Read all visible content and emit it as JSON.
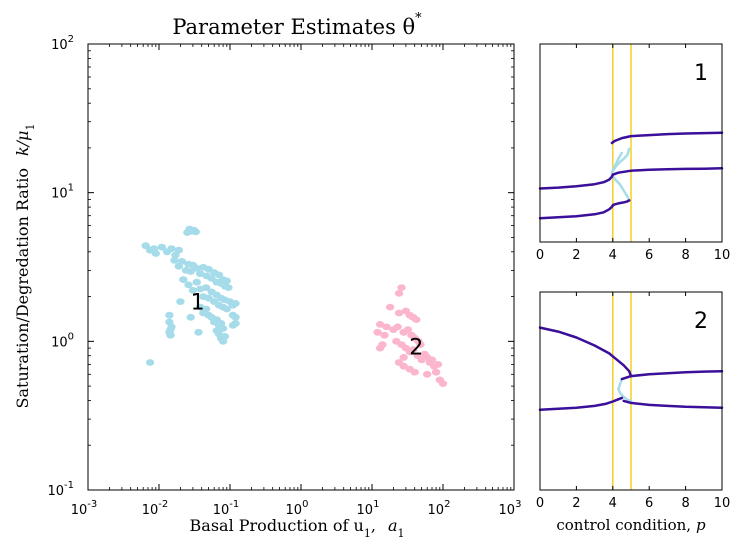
{
  "chart_data": [
    {
      "type": "scatter",
      "title": "Parameter Estimates θ",
      "title_superscript": "*",
      "xlabel": "Basal Production of u",
      "xlabel_subscript": "1",
      "xlabel_param": "a",
      "xlabel_param_subscript": "1",
      "ylabel": "Saturation/Degredation Ratio",
      "ylabel_param": "k/μ",
      "ylabel_param_subscript": "1",
      "x_scale": "log",
      "y_scale": "log",
      "xlim": [
        0.001,
        1000
      ],
      "ylim": [
        0.1,
        100
      ],
      "x_ticks": [
        {
          "base": "10",
          "exp": "-3"
        },
        {
          "base": "10",
          "exp": "-2"
        },
        {
          "base": "10",
          "exp": "-1"
        },
        {
          "base": "10",
          "exp": "0"
        },
        {
          "base": "10",
          "exp": "1"
        },
        {
          "base": "10",
          "exp": "2"
        },
        {
          "base": "10",
          "exp": "3"
        }
      ],
      "y_ticks": [
        {
          "base": "10",
          "exp": "-1"
        },
        {
          "base": "10",
          "exp": "0"
        },
        {
          "base": "10",
          "exp": "1"
        },
        {
          "base": "10",
          "exp": "2"
        }
      ],
      "grid": false,
      "clusters": [
        {
          "label": "1",
          "label_at": [
            0.035,
            1.85
          ],
          "color": "#a6dcea",
          "points": [
            [
              0.0065,
              4.4
            ],
            [
              0.0075,
              4.1
            ],
            [
              0.0085,
              4.2
            ],
            [
              0.009,
              3.9
            ],
            [
              0.011,
              4.3
            ],
            [
              0.013,
              4.0
            ],
            [
              0.015,
              4.2
            ],
            [
              0.017,
              3.8
            ],
            [
              0.019,
              4.1
            ],
            [
              0.0165,
              3.5
            ],
            [
              0.019,
              3.2
            ],
            [
              0.021,
              3.45
            ],
            [
              0.024,
              3.0
            ],
            [
              0.026,
              3.3
            ],
            [
              0.028,
              2.95
            ],
            [
              0.03,
              3.25
            ],
            [
              0.034,
              3.1
            ],
            [
              0.038,
              2.85
            ],
            [
              0.042,
              3.15
            ],
            [
              0.047,
              2.75
            ],
            [
              0.05,
              3.05
            ],
            [
              0.055,
              2.65
            ],
            [
              0.06,
              2.9
            ],
            [
              0.065,
              2.5
            ],
            [
              0.07,
              2.8
            ],
            [
              0.075,
              2.45
            ],
            [
              0.08,
              2.6
            ],
            [
              0.085,
              2.35
            ],
            [
              0.09,
              2.55
            ],
            [
              0.095,
              2.3
            ],
            [
              0.025,
              5.4
            ],
            [
              0.027,
              5.7
            ],
            [
              0.029,
              5.5
            ],
            [
              0.031,
              5.6
            ],
            [
              0.033,
              5.45
            ],
            [
              0.022,
              2.6
            ],
            [
              0.026,
              2.4
            ],
            [
              0.03,
              2.2
            ],
            [
              0.034,
              2.5
            ],
            [
              0.038,
              2.25
            ],
            [
              0.042,
              2.0
            ],
            [
              0.046,
              2.3
            ],
            [
              0.05,
              1.95
            ],
            [
              0.055,
              2.15
            ],
            [
              0.06,
              1.85
            ],
            [
              0.065,
              2.05
            ],
            [
              0.07,
              1.75
            ],
            [
              0.075,
              1.95
            ],
            [
              0.08,
              1.7
            ],
            [
              0.085,
              1.9
            ],
            [
              0.09,
              1.65
            ],
            [
              0.1,
              1.85
            ],
            [
              0.11,
              1.75
            ],
            [
              0.12,
              1.8
            ],
            [
              0.038,
              1.7
            ],
            [
              0.042,
              1.55
            ],
            [
              0.046,
              1.65
            ],
            [
              0.05,
              1.5
            ],
            [
              0.055,
              1.45
            ],
            [
              0.06,
              1.35
            ],
            [
              0.065,
              1.4
            ],
            [
              0.07,
              1.28
            ],
            [
              0.075,
              1.32
            ],
            [
              0.08,
              1.22
            ],
            [
              0.065,
              1.18
            ],
            [
              0.07,
              1.12
            ],
            [
              0.075,
              1.05
            ],
            [
              0.08,
              1.0
            ],
            [
              0.085,
              1.08
            ],
            [
              0.014,
              1.5
            ],
            [
              0.014,
              1.35
            ],
            [
              0.0145,
              1.2
            ],
            [
              0.0145,
              1.1
            ],
            [
              0.015,
              1.25
            ],
            [
              0.014,
              1.15
            ],
            [
              0.0075,
              0.72
            ],
            [
              0.02,
              1.85
            ],
            [
              0.028,
              1.45
            ],
            [
              0.036,
              1.15
            ],
            [
              0.11,
              1.5
            ],
            [
              0.12,
              1.45
            ],
            [
              0.12,
              1.32
            ],
            [
              0.11,
              1.28
            ]
          ]
        },
        {
          "label": "2",
          "label_at": [
            42,
            0.92
          ],
          "color": "#fbb6ce",
          "points": [
            [
              18,
              1.7
            ],
            [
              24,
              2.1
            ],
            [
              26,
              2.3
            ],
            [
              24,
              1.55
            ],
            [
              30,
              1.6
            ],
            [
              34,
              1.5
            ],
            [
              38,
              1.45
            ],
            [
              42,
              1.4
            ],
            [
              13,
              1.3
            ],
            [
              16,
              1.25
            ],
            [
              12,
              1.15
            ],
            [
              15,
              1.1
            ],
            [
              20,
              1.2
            ],
            [
              23,
              1.25
            ],
            [
              28,
              1.15
            ],
            [
              32,
              1.2
            ],
            [
              36,
              1.1
            ],
            [
              40,
              1.05
            ],
            [
              45,
              1.0
            ],
            [
              48,
              0.95
            ],
            [
              14,
              0.95
            ],
            [
              13,
              0.9
            ],
            [
              22,
              1.0
            ],
            [
              26,
              0.95
            ],
            [
              30,
              0.9
            ],
            [
              34,
              0.85
            ],
            [
              38,
              0.88
            ],
            [
              44,
              0.8
            ],
            [
              50,
              0.75
            ],
            [
              55,
              0.82
            ],
            [
              60,
              0.78
            ],
            [
              65,
              0.72
            ],
            [
              70,
              0.75
            ],
            [
              75,
              0.68
            ],
            [
              24,
              0.72
            ],
            [
              28,
              0.68
            ],
            [
              34,
              0.65
            ],
            [
              40,
              0.62
            ],
            [
              60,
              0.6
            ],
            [
              80,
              0.62
            ],
            [
              90,
              0.55
            ],
            [
              100,
              0.52
            ],
            [
              28,
              0.78
            ],
            [
              85,
              0.7
            ]
          ]
        }
      ]
    },
    {
      "type": "line",
      "panel_label": "1",
      "xlim": [
        0,
        10
      ],
      "x_ticks": [
        "0",
        "2",
        "4",
        "6",
        "8",
        "10"
      ],
      "y_ticks": [],
      "vlines": [
        4.0,
        5.0
      ],
      "vline_color": "#f2d024",
      "stable_color": "#3b0f9a",
      "unstable_color": "#a6dcea",
      "grid": false,
      "ylim": [
        0,
        1
      ],
      "stable_branches": [
        {
          "x": [
            0,
            1,
            2,
            3,
            3.5,
            3.8,
            3.95,
            4.0
          ],
          "y": [
            0.12,
            0.125,
            0.13,
            0.14,
            0.15,
            0.165,
            0.178,
            0.185
          ]
        },
        {
          "x": [
            4.0,
            4.1,
            4.3,
            4.6,
            4.8,
            4.9
          ],
          "y": [
            0.185,
            0.19,
            0.195,
            0.2,
            0.205,
            0.21
          ]
        },
        {
          "x": [
            0,
            1,
            2,
            3,
            3.5,
            3.8,
            3.95,
            4.0
          ],
          "y": [
            0.27,
            0.275,
            0.282,
            0.292,
            0.302,
            0.315,
            0.33,
            0.34
          ]
        },
        {
          "x": [
            4.0,
            4.3,
            5,
            6,
            7,
            8,
            9,
            10
          ],
          "y": [
            0.34,
            0.35,
            0.36,
            0.365,
            0.367,
            0.369,
            0.37,
            0.372
          ]
        },
        {
          "x": [
            3.95,
            4.1,
            4.5,
            5,
            6,
            7,
            8,
            9,
            10
          ],
          "y": [
            0.5,
            0.51,
            0.525,
            0.535,
            0.54,
            0.545,
            0.548,
            0.55,
            0.552
          ]
        }
      ],
      "unstable_branches": [
        {
          "x": [
            4.0,
            4.2,
            4.4,
            4.6,
            4.8,
            4.9
          ],
          "y": [
            0.36,
            0.385,
            0.405,
            0.42,
            0.44,
            0.47
          ]
        },
        {
          "x": [
            4.9,
            4.8,
            4.6,
            4.4,
            4.2,
            4.05,
            3.95
          ],
          "y": [
            0.21,
            0.23,
            0.26,
            0.29,
            0.31,
            0.325,
            0.335
          ]
        },
        {
          "x": [
            3.95,
            4.1,
            4.3,
            4.5
          ],
          "y": [
            0.35,
            0.38,
            0.42,
            0.45
          ]
        }
      ]
    },
    {
      "type": "line",
      "panel_label": "2",
      "xlabel": "control condition,",
      "xlabel_param": "p",
      "xlim": [
        0,
        10
      ],
      "x_ticks": [
        "0",
        "2",
        "4",
        "6",
        "8",
        "10"
      ],
      "y_ticks": [],
      "vlines": [
        4.0,
        5.0
      ],
      "vline_color": "#f2d024",
      "stable_color": "#3b0f9a",
      "unstable_color": "#a6dcea",
      "grid": false,
      "ylim": [
        0,
        1
      ],
      "stable_branches": [
        {
          "x": [
            0,
            1,
            2,
            3,
            3.8,
            4.2,
            4.6,
            4.9,
            5.0
          ],
          "y": [
            0.82,
            0.8,
            0.77,
            0.73,
            0.69,
            0.66,
            0.63,
            0.6,
            0.575
          ]
        },
        {
          "x": [
            4.5,
            5,
            6,
            7,
            8,
            9,
            10
          ],
          "y": [
            0.56,
            0.575,
            0.585,
            0.59,
            0.595,
            0.598,
            0.6
          ]
        },
        {
          "x": [
            0,
            1,
            2,
            3,
            3.6,
            4.0,
            4.3,
            4.5
          ],
          "y": [
            0.405,
            0.41,
            0.415,
            0.425,
            0.435,
            0.447,
            0.458,
            0.465
          ]
        },
        {
          "x": [
            4.6,
            4.8,
            5,
            6,
            7,
            8,
            9,
            10
          ],
          "y": [
            0.45,
            0.445,
            0.44,
            0.43,
            0.425,
            0.42,
            0.418,
            0.415
          ]
        }
      ],
      "unstable_branches": [
        {
          "x": [
            4.5,
            4.4,
            4.3,
            4.4,
            4.6,
            4.8,
            5.0
          ],
          "y": [
            0.56,
            0.535,
            0.51,
            0.49,
            0.47,
            0.455,
            0.45
          ]
        }
      ]
    }
  ]
}
